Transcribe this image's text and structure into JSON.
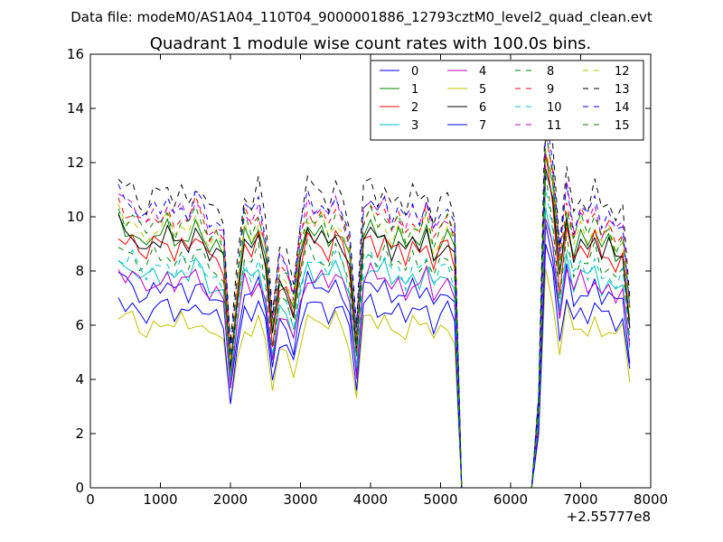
{
  "header": {
    "suptitle": "Data file: modeM0/AS1A04_110T04_9000001886_12793cztM0_level2_quad_clean.evt"
  },
  "chart_data": {
    "type": "line",
    "title": "Quadrant 1 module wise count rates with 100.0s bins.",
    "xlabel": "",
    "ylabel": "",
    "xlim": [
      0,
      8000
    ],
    "ylim": [
      0,
      16
    ],
    "x_offset_label": "+2.55777e8",
    "xticks": [
      "0",
      "1000",
      "2000",
      "3000",
      "4000",
      "5000",
      "6000",
      "7000",
      "8000"
    ],
    "yticks": [
      "0",
      "2",
      "4",
      "6",
      "8",
      "10",
      "12",
      "14",
      "16"
    ],
    "legend_position": "top-right",
    "x": [
      400,
      500,
      600,
      700,
      800,
      900,
      1000,
      1100,
      1200,
      1300,
      1400,
      1500,
      1600,
      1700,
      1800,
      1900,
      2000,
      2100,
      2200,
      2300,
      2400,
      2500,
      2600,
      2700,
      2800,
      2900,
      3000,
      3100,
      3200,
      3300,
      3400,
      3500,
      3600,
      3700,
      3800,
      3900,
      4000,
      4100,
      4200,
      4300,
      4400,
      4500,
      4600,
      4700,
      4800,
      4900,
      5000,
      5100,
      5200,
      5300,
      5400,
      5500,
      5600,
      5700,
      5800,
      5900,
      6000,
      6100,
      6200,
      6300,
      6400,
      6500,
      6600,
      6700,
      6800,
      6900,
      7000,
      7100,
      7200,
      7300,
      7400,
      7500,
      7600,
      7700
    ],
    "base_shape": [
      1.0,
      0.96,
      0.97,
      0.92,
      0.9,
      0.95,
      0.93,
      0.97,
      0.91,
      0.96,
      0.92,
      0.98,
      0.94,
      0.88,
      0.9,
      0.86,
      0.46,
      0.74,
      0.95,
      0.9,
      0.97,
      0.85,
      0.57,
      0.78,
      0.76,
      0.66,
      0.86,
      0.98,
      0.94,
      0.96,
      0.91,
      0.98,
      0.93,
      0.84,
      0.52,
      0.95,
      0.99,
      0.93,
      0.97,
      0.9,
      0.94,
      0.88,
      0.95,
      0.91,
      0.97,
      0.86,
      0.92,
      0.94,
      0.87,
      0.0,
      0.0,
      0.0,
      0.0,
      0.0,
      0.0,
      0.0,
      0.0,
      0.0,
      0.0,
      0.0,
      0.3,
      1.25,
      1.1,
      0.78,
      1.02,
      0.88,
      0.95,
      0.9,
      0.97,
      0.88,
      0.92,
      0.86,
      0.9,
      0.62
    ],
    "series": [
      {
        "name": "0",
        "color": "#0000ff",
        "dash": "solid",
        "level": 7.8
      },
      {
        "name": "1",
        "color": "#008000",
        "dash": "solid",
        "level": 9.9
      },
      {
        "name": "2",
        "color": "#ff0000",
        "dash": "solid",
        "level": 9.5
      },
      {
        "name": "3",
        "color": "#00bfbf",
        "dash": "solid",
        "level": 8.4
      },
      {
        "name": "4",
        "color": "#bf00bf",
        "dash": "solid",
        "level": 8.1
      },
      {
        "name": "5",
        "color": "#bfbf00",
        "dash": "solid",
        "level": 6.4
      },
      {
        "name": "6",
        "color": "#000000",
        "dash": "solid",
        "level": 9.7
      },
      {
        "name": "7",
        "color": "#0000ff",
        "dash": "solid",
        "level": 7.0
      },
      {
        "name": "8",
        "color": "#008000",
        "dash": "dashed",
        "level": 9.0
      },
      {
        "name": "9",
        "color": "#ff0000",
        "dash": "dashed",
        "level": 10.6
      },
      {
        "name": "10",
        "color": "#00bfbf",
        "dash": "dashed",
        "level": 8.7
      },
      {
        "name": "11",
        "color": "#bf00bf",
        "dash": "dashed",
        "level": 10.8
      },
      {
        "name": "12",
        "color": "#bfbf00",
        "dash": "dashed",
        "level": 10.2
      },
      {
        "name": "13",
        "color": "#000000",
        "dash": "dashed",
        "level": 11.5
      },
      {
        "name": "14",
        "color": "#0000ff",
        "dash": "dashed",
        "level": 11.0
      },
      {
        "name": "15",
        "color": "#008000",
        "dash": "dashed",
        "level": 10.4
      }
    ]
  }
}
